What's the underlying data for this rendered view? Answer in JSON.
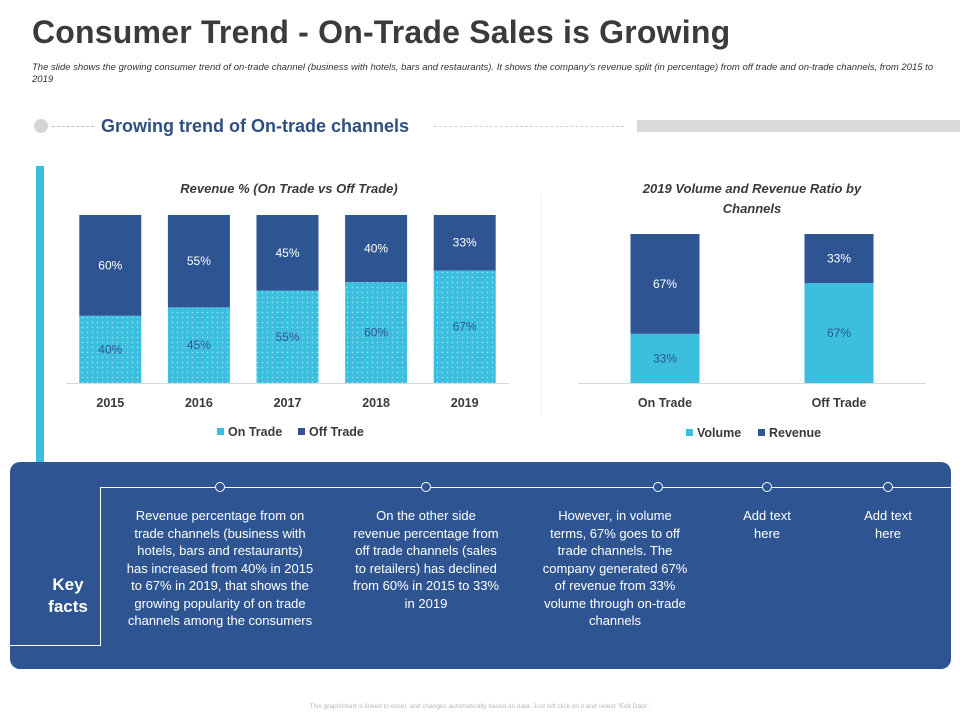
{
  "page": {
    "title": "Consumer Trend - On-Trade Sales is Growing",
    "subtitle": "The slide shows the growing consumer trend of on-trade channel (business with hotels, bars and restaurants). It shows the company's revenue split (in percentage) from off trade and on-trade channels, from 2015 to 2019",
    "section_title": "Growing trend of On-trade channels",
    "footer": "This graph/chart is linked to excel, and changes automatically based on data. Just left click on it and select \"Edit Data\"."
  },
  "colors": {
    "light": "#3cbfde",
    "dark": "#2e5592",
    "panel": "#2e5592"
  },
  "chart_data": [
    {
      "type": "bar",
      "stacked": true,
      "title": "Revenue % (On Trade vs Off Trade)",
      "categories": [
        "2015",
        "2016",
        "2017",
        "2018",
        "2019"
      ],
      "series": [
        {
          "name": "On Trade",
          "values": [
            40,
            45,
            55,
            60,
            67
          ],
          "labels": [
            "40%",
            "45%",
            "55%",
            "60%",
            "67%"
          ],
          "color": "#3cbfde"
        },
        {
          "name": "Off Trade",
          "values": [
            60,
            55,
            45,
            40,
            33
          ],
          "labels": [
            "60%",
            "55%",
            "45%",
            "40%",
            "33%"
          ],
          "color": "#2e5592"
        }
      ],
      "ylim": [
        0,
        100
      ],
      "legend": "bottom"
    },
    {
      "type": "bar",
      "stacked": true,
      "title": "2019 Volume and Revenue Ratio by Channels",
      "categories": [
        "On Trade",
        "Off Trade"
      ],
      "series": [
        {
          "name": "Volume",
          "values": [
            33,
            67
          ],
          "labels": [
            "33%",
            "67%"
          ],
          "color": "#3cbfde"
        },
        {
          "name": "Revenue",
          "values": [
            67,
            33
          ],
          "labels": [
            "67%",
            "33%"
          ],
          "color": "#2e5592"
        }
      ],
      "ylim": [
        0,
        100
      ],
      "legend": "bottom"
    }
  ],
  "key_facts": {
    "title": "Key facts",
    "items": [
      "Revenue percentage from on trade channels (business with hotels, bars and restaurants) has increased from 40% in 2015 to 67% in 2019, that shows the growing popularity of on trade channels among the consumers",
      "On the other side revenue percentage from off trade channels (sales to retailers) has declined from 60% in 2015 to 33% in 2019",
      "However, in volume terms, 67% goes to off trade channels. The company generated 67% of revenue from 33% volume through on-trade channels",
      "Add text here",
      "Add text here"
    ]
  }
}
